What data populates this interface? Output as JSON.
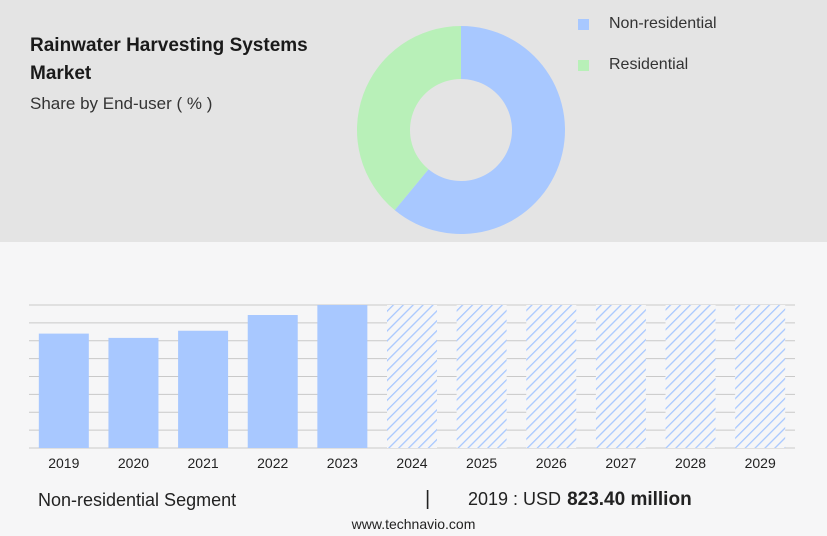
{
  "header": {
    "title": "Rainwater Harvesting Systems Market",
    "subtitle": "Share by End-user ( % )"
  },
  "chart_data": [
    {
      "type": "pie",
      "title": "Rainwater Harvesting Systems Market",
      "subtitle": "Share by End-user ( % )",
      "categories": [
        "Non-residential",
        "Residential"
      ],
      "values": [
        61,
        39
      ],
      "colors": [
        "#a8c8ff",
        "#b8f0b8"
      ],
      "legend_position": "top-right",
      "donut": true
    },
    {
      "type": "bar",
      "categories": [
        "2019",
        "2020",
        "2021",
        "2022",
        "2023",
        "2024",
        "2025",
        "2026",
        "2027",
        "2028",
        "2029"
      ],
      "values": [
        80,
        77,
        82,
        93,
        100,
        100,
        100,
        100,
        100,
        100,
        100
      ],
      "forecast_from": "2024",
      "ylim": [
        0,
        100
      ],
      "grid": true,
      "bar_color": "#a8c8ff",
      "forecast_pattern": "diagonal-hatch"
    }
  ],
  "footer": {
    "segment": "Non-residential Segment",
    "separator": "|",
    "year_prefix": "2019 : USD",
    "value": "823.40 million",
    "source": "www.technavio.com"
  }
}
